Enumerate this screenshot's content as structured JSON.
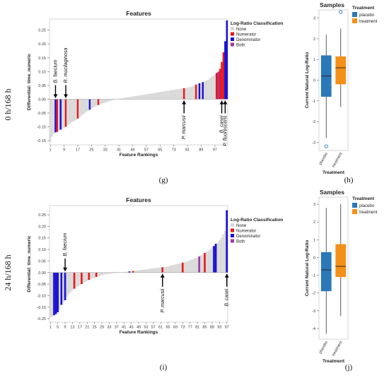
{
  "rows": [
    {
      "row_label": "0 h/168 h",
      "bar_panel_label": "(g)",
      "box_panel_label": "(h)"
    },
    {
      "row_label": "24 h/168 h",
      "bar_panel_label": "(i)",
      "box_panel_label": "(j)"
    }
  ],
  "colors": {
    "None": "#d9d9d9",
    "Numerator": "#e8191b",
    "Denominator": "#1a12d4",
    "Both": "#9b3aa3",
    "placebo": "#2a78b8",
    "treatment": "#f39019"
  },
  "chart_data": [
    {
      "type": "bar",
      "title": "Features",
      "xlabel": "Feature Rankings",
      "ylabel": "Differential: time_numeric",
      "ylim": [
        -0.165,
        0.29
      ],
      "yticks": [
        -0.15,
        -0.1,
        -0.05,
        0.0,
        0.05,
        0.1,
        0.15,
        0.2,
        0.25
      ],
      "ytick_labels": [
        "-0.15",
        "-0.10",
        "-0.05",
        "0.00",
        "0.05",
        "0.10",
        "0.15",
        "0.20",
        "0.25"
      ],
      "n_features": 104,
      "xtick_labels": [
        "1",
        "9",
        "17",
        "25",
        "33",
        "41",
        "49",
        "57",
        "65",
        "73",
        "81",
        "89",
        "97"
      ],
      "legend": {
        "title": "Log-Ratio Classification",
        "entries": [
          "None",
          "Numerator",
          "Denominator",
          "Both"
        ]
      },
      "values": [
        -0.155,
        -0.135,
        -0.125,
        -0.12,
        -0.118,
        -0.115,
        -0.11,
        -0.108,
        -0.105,
        -0.1,
        -0.095,
        -0.09,
        -0.085,
        -0.082,
        -0.078,
        -0.075,
        -0.07,
        -0.065,
        -0.06,
        -0.055,
        -0.05,
        -0.046,
        -0.042,
        -0.038,
        -0.034,
        -0.03,
        -0.027,
        -0.024,
        -0.021,
        -0.018,
        -0.016,
        -0.014,
        -0.012,
        -0.01,
        -0.008,
        -0.006,
        -0.004,
        -0.002,
        0.0,
        0.001,
        0.002,
        0.003,
        0.004,
        0.005,
        0.006,
        0.007,
        0.008,
        0.009,
        0.01,
        0.011,
        0.012,
        0.013,
        0.014,
        0.015,
        0.016,
        0.017,
        0.018,
        0.019,
        0.02,
        0.021,
        0.022,
        0.023,
        0.024,
        0.025,
        0.026,
        0.027,
        0.028,
        0.029,
        0.03,
        0.031,
        0.032,
        0.033,
        0.034,
        0.035,
        0.036,
        0.037,
        0.038,
        0.039,
        0.04,
        0.041,
        0.042,
        0.043,
        0.045,
        0.047,
        0.05,
        0.053,
        0.055,
        0.058,
        0.06,
        0.062,
        0.065,
        0.068,
        0.07,
        0.075,
        0.08,
        0.085,
        0.09,
        0.095,
        0.1,
        0.11,
        0.135,
        0.17,
        0.21,
        0.285
      ],
      "classes": {
        "Numerator": [
          5,
          10,
          17,
          29,
          79,
          86,
          98,
          100,
          101,
          102
        ],
        "Denominator": [
          4,
          7,
          24,
          88,
          90,
          103,
          104
        ],
        "Both": [
          99
        ]
      },
      "annotations": [
        {
          "label": "B. faecium",
          "rank": 4,
          "side": "above"
        },
        {
          "label": "R. mucilaginosa",
          "rank": 10,
          "side": "above"
        },
        {
          "label": "P. marcusii",
          "rank": 79,
          "side": "below"
        },
        {
          "label": "B. casei",
          "rank": 101,
          "side": "below"
        },
        {
          "label": "P. fluorescens",
          "rank": 103,
          "side": "below"
        }
      ]
    },
    {
      "type": "box",
      "title": "Samples",
      "ylabel": "Current Natural Log-Ratio",
      "xlabel": "Treatment",
      "ylim": [
        -3.4,
        3.4
      ],
      "yticks": [
        -3,
        -2,
        -1,
        0,
        1,
        2,
        3
      ],
      "ytick_labels": [
        "-3",
        "-2",
        "-1",
        "0",
        "1",
        "2",
        "3"
      ],
      "legend": {
        "title": "Treatment",
        "entries": [
          "placebo",
          "treatment"
        ]
      },
      "series": [
        {
          "name": "placebo",
          "whisker_low": -2.8,
          "q1": -0.8,
          "median": 0.2,
          "q3": 1.2,
          "whisker_high": 2.2,
          "outliers": [
            -3.2
          ]
        },
        {
          "name": "treatment",
          "whisker_low": -1.3,
          "q1": -0.2,
          "median": 0.6,
          "q3": 1.15,
          "whisker_high": 2.5,
          "outliers": [
            3.3
          ]
        }
      ]
    },
    {
      "type": "bar",
      "title": "Features",
      "xlabel": "Feature Rankings",
      "ylabel": "Differential: time_numeric",
      "ylim": [
        -0.215,
        0.29
      ],
      "yticks": [
        -0.2,
        -0.15,
        -0.1,
        -0.05,
        0.0,
        0.05,
        0.1,
        0.15,
        0.2,
        0.25
      ],
      "ytick_labels": [
        "-0.20",
        "-0.15",
        "-0.10",
        "-0.05",
        "0.00",
        "0.05",
        "0.10",
        "0.15",
        "0.20",
        "0.25"
      ],
      "n_features": 97,
      "xtick_labels": [
        "1",
        "5",
        "9",
        "13",
        "17",
        "21",
        "25",
        "29",
        "33",
        "37",
        "41",
        "45",
        "49",
        "53",
        "57",
        "61",
        "65",
        "69",
        "73",
        "77",
        "81",
        "85",
        "89",
        "93",
        "97"
      ],
      "legend": {
        "title": "Log-Ratio Classification",
        "entries": [
          "None",
          "Numerator",
          "Denominator",
          "Both"
        ]
      },
      "values": [
        -0.195,
        -0.19,
        -0.185,
        -0.18,
        -0.172,
        -0.16,
        -0.14,
        -0.13,
        -0.12,
        -0.105,
        -0.095,
        -0.085,
        -0.075,
        -0.07,
        -0.065,
        -0.06,
        -0.055,
        -0.05,
        -0.045,
        -0.04,
        -0.036,
        -0.032,
        -0.028,
        -0.025,
        -0.022,
        -0.019,
        -0.016,
        -0.014,
        -0.012,
        -0.01,
        -0.008,
        -0.007,
        -0.006,
        -0.005,
        -0.004,
        -0.003,
        -0.002,
        -0.001,
        0.0,
        0.001,
        0.002,
        0.003,
        0.004,
        0.005,
        0.006,
        0.007,
        0.008,
        0.009,
        0.01,
        0.011,
        0.012,
        0.013,
        0.014,
        0.015,
        0.016,
        0.017,
        0.018,
        0.019,
        0.02,
        0.021,
        0.022,
        0.023,
        0.024,
        0.025,
        0.027,
        0.029,
        0.031,
        0.033,
        0.035,
        0.037,
        0.039,
        0.041,
        0.043,
        0.045,
        0.047,
        0.05,
        0.053,
        0.056,
        0.06,
        0.063,
        0.065,
        0.07,
        0.075,
        0.08,
        0.085,
        0.09,
        0.095,
        0.1,
        0.11,
        0.115,
        0.125,
        0.13,
        0.14,
        0.15,
        0.165,
        0.18,
        0.27
      ],
      "classes": {
        "Numerator": [
          14,
          18,
          22,
          26,
          38,
          46,
          62,
          73,
          85
        ],
        "Denominator": [
          3,
          4,
          5,
          7,
          9,
          44,
          90,
          91,
          97
        ],
        "Both": [
          82
        ]
      },
      "annotations": [
        {
          "label": "B. faecium",
          "rank": 9,
          "side": "above"
        },
        {
          "label": "P. marcusii",
          "rank": 62,
          "side": "below"
        },
        {
          "label": "B. casei",
          "rank": 97,
          "side": "below"
        }
      ]
    },
    {
      "type": "box",
      "title": "Samples",
      "ylabel": "Current Natural Log-Ratio",
      "xlabel": "Treatment",
      "ylim": [
        -4.6,
        3.4
      ],
      "yticks": [
        -4,
        -3,
        -2,
        -1,
        0,
        1,
        2,
        3
      ],
      "ytick_labels": [
        "-4",
        "-3",
        "-2",
        "-1",
        "0",
        "1",
        "2",
        "3"
      ],
      "legend": {
        "title": "Treatment",
        "entries": [
          "placebo",
          "treatment"
        ]
      },
      "series": [
        {
          "name": "placebo",
          "whisker_low": -4.3,
          "q1": -1.9,
          "median": -0.7,
          "q3": 0.3,
          "whisker_high": 2.8,
          "outliers": []
        },
        {
          "name": "treatment",
          "whisker_low": -3.3,
          "q1": -1.1,
          "median": -0.5,
          "q3": 0.75,
          "whisker_high": 3.0,
          "outliers": []
        }
      ]
    }
  ]
}
